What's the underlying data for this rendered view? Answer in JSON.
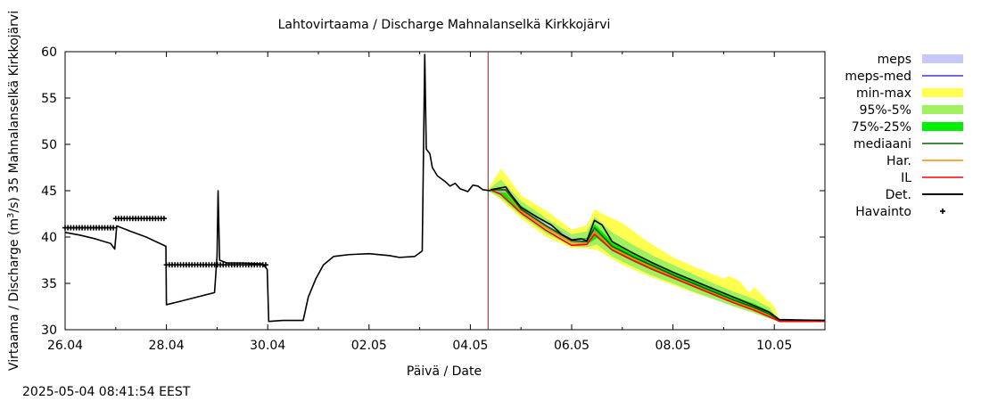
{
  "chart_data": {
    "type": "line",
    "title": "Lahtovirtaama / Discharge  Mahnalanselkä Kirkkojärvi",
    "xlabel": "Päivä / Date",
    "ylabel_pre": "Virtaama / Discharge (m",
    "ylabel_sup": "3",
    "ylabel_post": "/s)  35 Mahnalanselkä Kirkkojärvi",
    "timestamp": "2025-05-04 08:41:54 EEST",
    "x_unit": "days since 26.04",
    "xlim": [
      0,
      15
    ],
    "ylim": [
      30,
      60
    ],
    "yticks": [
      30,
      35,
      40,
      45,
      50,
      55,
      60
    ],
    "xticks": [
      {
        "x": 0,
        "label": "26.04"
      },
      {
        "x": 2,
        "label": "28.04"
      },
      {
        "x": 4,
        "label": "30.04"
      },
      {
        "x": 6,
        "label": "02.05"
      },
      {
        "x": 8,
        "label": "04.05"
      },
      {
        "x": 10,
        "label": "06.05"
      },
      {
        "x": 12,
        "label": "08.05"
      },
      {
        "x": 14,
        "label": "10.05"
      }
    ],
    "forecast_start": 8.35,
    "legend": [
      {
        "key": "meps",
        "label": "meps",
        "style": "band",
        "color": "#c8c8f8"
      },
      {
        "key": "meps_med",
        "label": "meps-med",
        "style": "line",
        "color": "#3a3ad0"
      },
      {
        "key": "minmax",
        "label": "min-max",
        "style": "band",
        "color": "#ffff50"
      },
      {
        "key": "p95_5",
        "label": "95%-5%",
        "style": "band",
        "color": "#a0f060"
      },
      {
        "key": "p75_25",
        "label": "75%-25%",
        "style": "band",
        "color": "#00ee00"
      },
      {
        "key": "median",
        "label": "mediaani",
        "style": "line",
        "color": "#006400"
      },
      {
        "key": "har",
        "label": "Har.",
        "style": "line",
        "color": "#ff8c00"
      },
      {
        "key": "il",
        "label": "IL",
        "style": "line",
        "color": "#ff0000"
      },
      {
        "key": "det",
        "label": "Det.",
        "style": "line",
        "color": "#000000"
      },
      {
        "key": "havainto",
        "label": "Havainto",
        "style": "marker",
        "color": "#000000"
      }
    ],
    "series": [
      {
        "name": "Det. (history)",
        "points": [
          [
            0,
            40.5
          ],
          [
            0.3,
            40.2
          ],
          [
            0.6,
            39.8
          ],
          [
            0.9,
            39.3
          ],
          [
            0.98,
            38.7
          ],
          [
            1.02,
            41.2
          ],
          [
            1.3,
            40.6
          ],
          [
            1.6,
            40.0
          ],
          [
            1.99,
            39.0
          ],
          [
            2.0,
            32.7
          ],
          [
            2.3,
            33.1
          ],
          [
            2.8,
            33.8
          ],
          [
            2.95,
            34.0
          ],
          [
            3.0,
            38.0
          ],
          [
            3.02,
            45.0
          ],
          [
            3.05,
            37.5
          ],
          [
            3.2,
            37.2
          ],
          [
            3.5,
            37.2
          ],
          [
            3.9,
            37.1
          ],
          [
            3.99,
            36.5
          ],
          [
            4.02,
            30.9
          ],
          [
            4.3,
            31.0
          ],
          [
            4.7,
            31.0
          ],
          [
            4.8,
            33.5
          ],
          [
            4.95,
            35.5
          ],
          [
            5.1,
            37.0
          ],
          [
            5.3,
            37.9
          ],
          [
            5.6,
            38.1
          ],
          [
            6.0,
            38.2
          ],
          [
            6.4,
            38.0
          ],
          [
            6.6,
            37.8
          ],
          [
            6.9,
            37.9
          ],
          [
            7.05,
            38.5
          ],
          [
            7.1,
            59.7
          ],
          [
            7.13,
            49.5
          ],
          [
            7.2,
            49.0
          ],
          [
            7.25,
            47.5
          ],
          [
            7.35,
            46.6
          ],
          [
            7.5,
            46.0
          ],
          [
            7.6,
            45.5
          ],
          [
            7.7,
            45.8
          ],
          [
            7.8,
            45.2
          ],
          [
            7.95,
            44.9
          ],
          [
            8.05,
            45.6
          ],
          [
            8.15,
            45.5
          ],
          [
            8.25,
            45.1
          ],
          [
            8.4,
            45.0
          ]
        ]
      },
      {
        "name": "Det.",
        "points": [
          [
            8.4,
            45.1
          ],
          [
            8.7,
            45.4
          ],
          [
            8.8,
            44.6
          ],
          [
            9.0,
            43.2
          ],
          [
            9.3,
            42.2
          ],
          [
            9.6,
            41.3
          ],
          [
            9.8,
            40.3
          ],
          [
            10.0,
            39.7
          ],
          [
            10.2,
            39.8
          ],
          [
            10.3,
            39.6
          ],
          [
            10.45,
            41.8
          ],
          [
            10.6,
            41.3
          ],
          [
            10.8,
            39.5
          ],
          [
            11.2,
            38.3
          ],
          [
            11.6,
            37.2
          ],
          [
            12.0,
            36.2
          ],
          [
            12.4,
            35.3
          ],
          [
            12.8,
            34.4
          ],
          [
            13.2,
            33.5
          ],
          [
            13.6,
            32.6
          ],
          [
            13.9,
            31.9
          ],
          [
            14.1,
            31.1
          ],
          [
            15.0,
            31.0
          ]
        ]
      },
      {
        "name": "mediaani",
        "points": [
          [
            8.4,
            45.1
          ],
          [
            8.7,
            45.1
          ],
          [
            9.0,
            43.0
          ],
          [
            9.5,
            41.2
          ],
          [
            10.0,
            39.6
          ],
          [
            10.3,
            39.5
          ],
          [
            10.45,
            41.0
          ],
          [
            10.8,
            39.0
          ],
          [
            11.2,
            37.9
          ],
          [
            11.6,
            36.9
          ],
          [
            12.0,
            35.9
          ],
          [
            12.4,
            35.0
          ],
          [
            12.8,
            34.1
          ],
          [
            13.2,
            33.2
          ],
          [
            13.6,
            32.4
          ],
          [
            13.9,
            31.7
          ],
          [
            14.1,
            31.0
          ],
          [
            15.0,
            31.0
          ]
        ]
      },
      {
        "name": "Har.",
        "points": [
          [
            8.4,
            45.1
          ],
          [
            8.7,
            45.0
          ],
          [
            9.0,
            42.8
          ],
          [
            9.5,
            41.0
          ],
          [
            10.0,
            39.4
          ],
          [
            10.3,
            39.3
          ],
          [
            10.45,
            40.6
          ],
          [
            10.8,
            38.8
          ],
          [
            11.2,
            37.7
          ],
          [
            11.6,
            36.7
          ],
          [
            12.0,
            35.7
          ],
          [
            12.4,
            34.8
          ],
          [
            12.8,
            33.9
          ],
          [
            13.2,
            33.0
          ],
          [
            13.6,
            32.2
          ],
          [
            13.9,
            31.5
          ],
          [
            14.1,
            31.0
          ],
          [
            15.0,
            31.0
          ]
        ]
      },
      {
        "name": "IL",
        "points": [
          [
            8.4,
            45.1
          ],
          [
            8.6,
            44.6
          ],
          [
            9.0,
            42.6
          ],
          [
            9.5,
            40.7
          ],
          [
            10.0,
            39.1
          ],
          [
            10.3,
            39.2
          ],
          [
            10.45,
            40.3
          ],
          [
            10.8,
            38.6
          ],
          [
            11.2,
            37.5
          ],
          [
            11.6,
            36.5
          ],
          [
            12.0,
            35.6
          ],
          [
            12.4,
            34.7
          ],
          [
            12.8,
            33.8
          ],
          [
            13.2,
            32.9
          ],
          [
            13.6,
            32.1
          ],
          [
            13.9,
            31.4
          ],
          [
            14.1,
            30.9
          ],
          [
            15.0,
            30.9
          ]
        ]
      },
      {
        "name": "meps-med",
        "points": [
          [
            8.4,
            45.1
          ],
          [
            8.7,
            45.0
          ],
          [
            9.0,
            43.0
          ],
          [
            9.5,
            41.2
          ],
          [
            10.0,
            39.6
          ],
          [
            10.3,
            39.5
          ],
          [
            10.45,
            40.7
          ]
        ]
      }
    ],
    "bands": [
      {
        "name": "min-max",
        "upper": [
          [
            8.35,
            45.2
          ],
          [
            8.6,
            47.4
          ],
          [
            9.0,
            44.5
          ],
          [
            9.5,
            42.8
          ],
          [
            10.0,
            40.8
          ],
          [
            10.3,
            41.3
          ],
          [
            10.45,
            43.0
          ],
          [
            10.6,
            42.5
          ],
          [
            11.0,
            41.5
          ],
          [
            11.5,
            39.5
          ],
          [
            12.0,
            37.8
          ],
          [
            12.5,
            36.6
          ],
          [
            13.0,
            35.5
          ],
          [
            13.1,
            35.8
          ],
          [
            13.3,
            35.3
          ],
          [
            13.5,
            34.0
          ],
          [
            13.6,
            34.6
          ],
          [
            13.8,
            33.5
          ],
          [
            14.0,
            32.5
          ],
          [
            14.1,
            31.0
          ],
          [
            15.0,
            31.0
          ]
        ],
        "lower": [
          [
            8.35,
            45.0
          ],
          [
            8.6,
            44.0
          ],
          [
            9.0,
            42.0
          ],
          [
            9.5,
            40.0
          ],
          [
            10.0,
            38.8
          ],
          [
            10.3,
            38.8
          ],
          [
            10.5,
            38.6
          ],
          [
            11.0,
            37.0
          ],
          [
            11.5,
            35.8
          ],
          [
            12.0,
            34.8
          ],
          [
            12.5,
            33.8
          ],
          [
            13.0,
            33.0
          ],
          [
            13.5,
            32.0
          ],
          [
            14.0,
            31.0
          ],
          [
            15.0,
            31.0
          ]
        ]
      },
      {
        "name": "95%-5%",
        "upper": [
          [
            8.35,
            45.1
          ],
          [
            8.6,
            46.2
          ],
          [
            9.0,
            43.9
          ],
          [
            9.5,
            42.0
          ],
          [
            10.0,
            40.3
          ],
          [
            10.3,
            40.6
          ],
          [
            10.45,
            42.2
          ],
          [
            10.8,
            40.5
          ],
          [
            11.2,
            39.2
          ],
          [
            11.6,
            38.0
          ],
          [
            12.0,
            37.0
          ],
          [
            12.4,
            36.0
          ],
          [
            12.8,
            35.0
          ],
          [
            13.2,
            34.1
          ],
          [
            13.6,
            33.3
          ],
          [
            13.9,
            32.4
          ],
          [
            14.1,
            31.0
          ],
          [
            15.0,
            31.0
          ]
        ],
        "lower": [
          [
            8.35,
            45.0
          ],
          [
            8.6,
            44.2
          ],
          [
            9.0,
            42.3
          ],
          [
            9.5,
            40.4
          ],
          [
            10.0,
            39.0
          ],
          [
            10.3,
            38.9
          ],
          [
            10.5,
            39.2
          ],
          [
            10.8,
            37.9
          ],
          [
            11.2,
            36.8
          ],
          [
            11.6,
            35.8
          ],
          [
            12.0,
            35.0
          ],
          [
            12.4,
            34.1
          ],
          [
            12.8,
            33.3
          ],
          [
            13.2,
            32.5
          ],
          [
            13.6,
            31.8
          ],
          [
            13.9,
            31.2
          ],
          [
            14.1,
            31.0
          ],
          [
            15.0,
            31.0
          ]
        ]
      },
      {
        "name": "75%-25%",
        "upper": [
          [
            8.35,
            45.1
          ],
          [
            8.6,
            45.4
          ],
          [
            9.0,
            43.4
          ],
          [
            9.5,
            41.6
          ],
          [
            10.0,
            39.9
          ],
          [
            10.3,
            39.9
          ],
          [
            10.45,
            41.4
          ],
          [
            10.8,
            39.5
          ],
          [
            11.2,
            38.3
          ],
          [
            11.6,
            37.3
          ],
          [
            12.0,
            36.3
          ],
          [
            12.4,
            35.4
          ],
          [
            12.8,
            34.5
          ],
          [
            13.2,
            33.6
          ],
          [
            13.6,
            32.8
          ],
          [
            13.9,
            32.0
          ],
          [
            14.1,
            31.0
          ],
          [
            15.0,
            31.0
          ]
        ],
        "lower": [
          [
            8.35,
            45.0
          ],
          [
            8.6,
            44.6
          ],
          [
            9.0,
            42.7
          ],
          [
            9.5,
            40.9
          ],
          [
            10.0,
            39.3
          ],
          [
            10.3,
            39.2
          ],
          [
            10.5,
            39.9
          ],
          [
            10.8,
            38.5
          ],
          [
            11.2,
            37.4
          ],
          [
            11.6,
            36.4
          ],
          [
            12.0,
            35.5
          ],
          [
            12.4,
            34.6
          ],
          [
            12.8,
            33.7
          ],
          [
            13.2,
            32.9
          ],
          [
            13.6,
            32.1
          ],
          [
            13.9,
            31.5
          ],
          [
            14.1,
            31.0
          ],
          [
            15.0,
            31.0
          ]
        ]
      },
      {
        "name": "meps",
        "upper": [
          [
            8.35,
            45.1
          ],
          [
            8.7,
            45.3
          ],
          [
            9.0,
            43.3
          ],
          [
            9.5,
            41.5
          ],
          [
            10.0,
            39.9
          ],
          [
            10.3,
            39.8
          ],
          [
            10.45,
            41.0
          ]
        ],
        "lower": [
          [
            8.35,
            45.0
          ],
          [
            8.7,
            44.8
          ],
          [
            9.0,
            42.7
          ],
          [
            9.5,
            40.9
          ],
          [
            10.0,
            39.3
          ],
          [
            10.3,
            39.2
          ],
          [
            10.45,
            40.4
          ]
        ]
      }
    ],
    "havainto": [
      {
        "from": 0.0,
        "to": 1.0,
        "y": 41.0
      },
      {
        "from": 1.0,
        "to": 2.0,
        "y": 42.0
      },
      {
        "from": 2.0,
        "to": 4.0,
        "y": 37.0
      }
    ]
  }
}
